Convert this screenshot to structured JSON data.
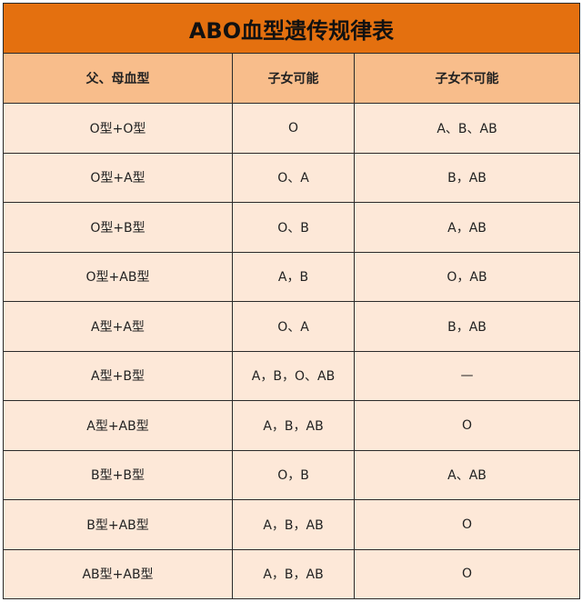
{
  "title": "ABO血型遗传规律表",
  "colors": {
    "title_bg": "#e4700f",
    "header_bg": "#f8bd8b",
    "row_bg": "#fde8d8"
  },
  "headers": [
    "父、母血型",
    "子女可能",
    "子女不可能"
  ],
  "rows": [
    [
      "O型+O型",
      "O",
      "A、B、AB"
    ],
    [
      "O型+A型",
      "O、A",
      "B，AB"
    ],
    [
      "O型+B型",
      "O、B",
      "A，AB"
    ],
    [
      "O型+AB型",
      "A，B",
      "O，AB"
    ],
    [
      "A型+A型",
      "O、A",
      "B，AB"
    ],
    [
      "A型+B型",
      "A，B，O、AB",
      "—"
    ],
    [
      "A型+AB型",
      "A，B，AB",
      "O"
    ],
    [
      "B型+B型",
      "O，B",
      "A、AB"
    ],
    [
      "B型+AB型",
      "A，B，AB",
      "O"
    ],
    [
      "AB型+AB型",
      "A，B，AB",
      "O"
    ]
  ]
}
